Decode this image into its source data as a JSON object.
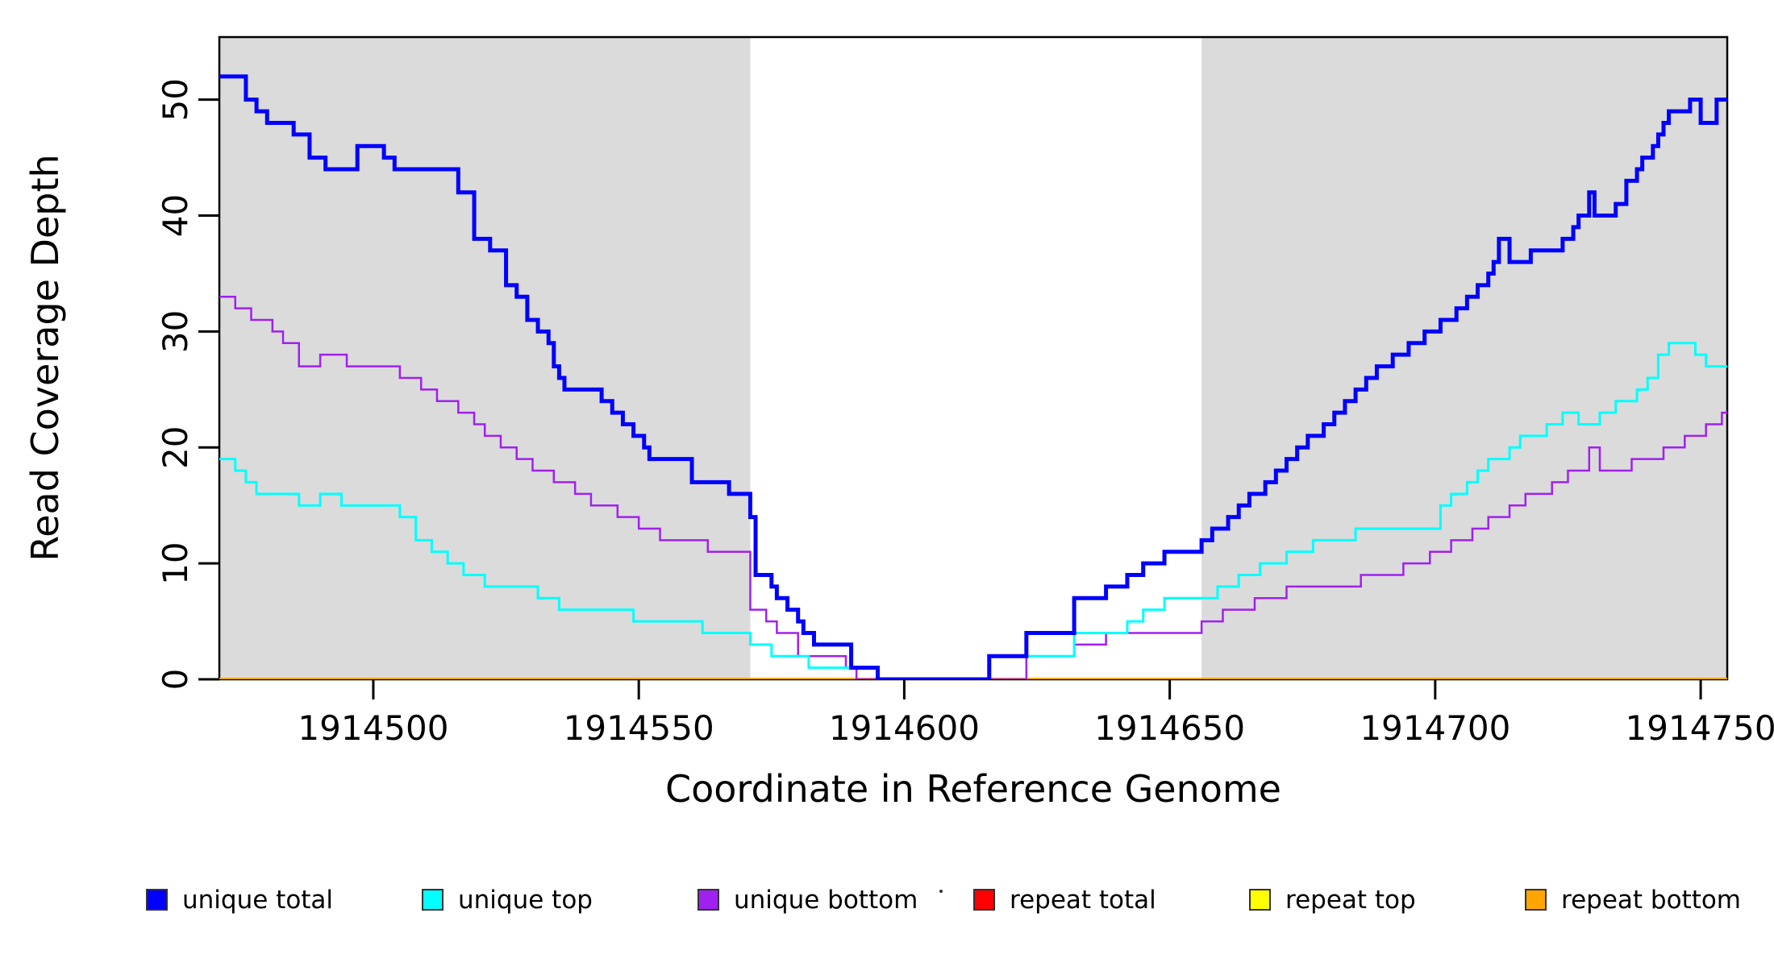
{
  "page": {
    "background": "#FFFFFF"
  },
  "chart_data": {
    "type": "line",
    "step": true,
    "title": "",
    "xlabel": "Coordinate in Reference Genome",
    "ylabel": "Read Coverage Depth",
    "xlim": [
      1914471,
      1914755
    ],
    "ylim": [
      0,
      55.4
    ],
    "xticks": [
      1914500,
      1914550,
      1914600,
      1914650,
      1914700,
      1914750
    ],
    "yticks": [
      0,
      10,
      20,
      30,
      40,
      50
    ],
    "grid": false,
    "plot_background": "#FFFFFF",
    "shaded_region_color": "#DBDBDB",
    "shaded_regions": [
      {
        "name": "left-shaded-region",
        "x0": 1914471,
        "x1": 1914571
      },
      {
        "name": "right-shaded-region",
        "x0": 1914656,
        "x1": 1914755
      }
    ],
    "legend": {
      "position": "bottom",
      "entries": [
        {
          "label": "unique total",
          "color": "#0000FF"
        },
        {
          "label": "unique top",
          "color": "#00FFFF"
        },
        {
          "label": "unique bottom",
          "color": "#A020F0"
        },
        {
          "label": "repeat total",
          "color": "#FF0000"
        },
        {
          "label": "repeat top",
          "color": "#FFFF00"
        },
        {
          "label": "repeat bottom",
          "color": "#FFA500"
        }
      ]
    },
    "series": [
      {
        "name": "repeat-total",
        "label": "repeat total",
        "color": "#FF0000",
        "line_width": 2.5,
        "points": [
          [
            1914471,
            0
          ]
        ]
      },
      {
        "name": "repeat-top",
        "label": "repeat top",
        "color": "#FFFF00",
        "line_width": 2.5,
        "points": [
          [
            1914471,
            0
          ]
        ]
      },
      {
        "name": "repeat-bottom",
        "label": "repeat bottom",
        "color": "#FFA500",
        "line_width": 4,
        "points": [
          [
            1914471,
            0
          ]
        ]
      },
      {
        "name": "unique-bottom",
        "label": "unique bottom",
        "color": "#A020F0",
        "line_width": 2.5,
        "points": [
          [
            1914471,
            33
          ],
          [
            1914474,
            32
          ],
          [
            1914477,
            31
          ],
          [
            1914481,
            30
          ],
          [
            1914483,
            29
          ],
          [
            1914486,
            27
          ],
          [
            1914490,
            28
          ],
          [
            1914495,
            27
          ],
          [
            1914505,
            26
          ],
          [
            1914509,
            25
          ],
          [
            1914512,
            24
          ],
          [
            1914516,
            23
          ],
          [
            1914519,
            22
          ],
          [
            1914521,
            21
          ],
          [
            1914524,
            20
          ],
          [
            1914527,
            19
          ],
          [
            1914530,
            18
          ],
          [
            1914534,
            17
          ],
          [
            1914538,
            16
          ],
          [
            1914541,
            15
          ],
          [
            1914546,
            14
          ],
          [
            1914550,
            13
          ],
          [
            1914554,
            12
          ],
          [
            1914563,
            11
          ],
          [
            1914571,
            6
          ],
          [
            1914574,
            5
          ],
          [
            1914576,
            4
          ],
          [
            1914580,
            2
          ],
          [
            1914589,
            1
          ],
          [
            1914591,
            0
          ],
          [
            1914623,
            2
          ],
          [
            1914632,
            3
          ],
          [
            1914638,
            4
          ],
          [
            1914656,
            5
          ],
          [
            1914660,
            6
          ],
          [
            1914666,
            7
          ],
          [
            1914672,
            8
          ],
          [
            1914686,
            9
          ],
          [
            1914694,
            10
          ],
          [
            1914699,
            11
          ],
          [
            1914703,
            12
          ],
          [
            1914707,
            13
          ],
          [
            1914710,
            14
          ],
          [
            1914714,
            15
          ],
          [
            1914717,
            16
          ],
          [
            1914722,
            17
          ],
          [
            1914725,
            18
          ],
          [
            1914729,
            20
          ],
          [
            1914731,
            18
          ],
          [
            1914737,
            19
          ],
          [
            1914743,
            20
          ],
          [
            1914747,
            21
          ],
          [
            1914751,
            22
          ],
          [
            1914754,
            23
          ]
        ]
      },
      {
        "name": "unique-top",
        "label": "unique top",
        "color": "#00FFFF",
        "line_width": 3,
        "points": [
          [
            1914471,
            19
          ],
          [
            1914474,
            18
          ],
          [
            1914476,
            17
          ],
          [
            1914478,
            16
          ],
          [
            1914486,
            15
          ],
          [
            1914490,
            16
          ],
          [
            1914494,
            15
          ],
          [
            1914505,
            14
          ],
          [
            1914508,
            12
          ],
          [
            1914511,
            11
          ],
          [
            1914514,
            10
          ],
          [
            1914517,
            9
          ],
          [
            1914521,
            8
          ],
          [
            1914531,
            7
          ],
          [
            1914535,
            6
          ],
          [
            1914549,
            5
          ],
          [
            1914562,
            4
          ],
          [
            1914571,
            3
          ],
          [
            1914575,
            2
          ],
          [
            1914582,
            1
          ],
          [
            1914595,
            0
          ],
          [
            1914616,
            2
          ],
          [
            1914632,
            4
          ],
          [
            1914642,
            5
          ],
          [
            1914645,
            6
          ],
          [
            1914649,
            7
          ],
          [
            1914659,
            8
          ],
          [
            1914663,
            9
          ],
          [
            1914667,
            10
          ],
          [
            1914672,
            11
          ],
          [
            1914677,
            12
          ],
          [
            1914685,
            13
          ],
          [
            1914701,
            15
          ],
          [
            1914703,
            16
          ],
          [
            1914706,
            17
          ],
          [
            1914708,
            18
          ],
          [
            1914710,
            19
          ],
          [
            1914714,
            20
          ],
          [
            1914716,
            21
          ],
          [
            1914721,
            22
          ],
          [
            1914724,
            23
          ],
          [
            1914727,
            22
          ],
          [
            1914731,
            23
          ],
          [
            1914734,
            24
          ],
          [
            1914738,
            25
          ],
          [
            1914740,
            26
          ],
          [
            1914742,
            28
          ],
          [
            1914744,
            29
          ],
          [
            1914749,
            28
          ],
          [
            1914751,
            27
          ]
        ]
      },
      {
        "name": "unique-total",
        "label": "unique total",
        "color": "#0000FF",
        "line_width": 5,
        "points": [
          [
            1914471,
            52
          ],
          [
            1914476,
            50
          ],
          [
            1914478,
            49
          ],
          [
            1914480,
            48
          ],
          [
            1914485,
            47
          ],
          [
            1914488,
            45
          ],
          [
            1914491,
            44
          ],
          [
            1914497,
            46
          ],
          [
            1914502,
            45
          ],
          [
            1914504,
            44
          ],
          [
            1914516,
            42
          ],
          [
            1914519,
            38
          ],
          [
            1914522,
            37
          ],
          [
            1914525,
            34
          ],
          [
            1914527,
            33
          ],
          [
            1914529,
            31
          ],
          [
            1914531,
            30
          ],
          [
            1914533,
            29
          ],
          [
            1914534,
            27
          ],
          [
            1914535,
            26
          ],
          [
            1914536,
            25
          ],
          [
            1914543,
            24
          ],
          [
            1914545,
            23
          ],
          [
            1914547,
            22
          ],
          [
            1914549,
            21
          ],
          [
            1914551,
            20
          ],
          [
            1914552,
            19
          ],
          [
            1914560,
            17
          ],
          [
            1914567,
            16
          ],
          [
            1914571,
            14
          ],
          [
            1914572,
            9
          ],
          [
            1914575,
            8
          ],
          [
            1914576,
            7
          ],
          [
            1914578,
            6
          ],
          [
            1914580,
            5
          ],
          [
            1914581,
            4
          ],
          [
            1914583,
            3
          ],
          [
            1914590,
            1
          ],
          [
            1914595,
            0
          ],
          [
            1914616,
            2
          ],
          [
            1914623,
            4
          ],
          [
            1914632,
            7
          ],
          [
            1914638,
            8
          ],
          [
            1914642,
            9
          ],
          [
            1914645,
            10
          ],
          [
            1914649,
            11
          ],
          [
            1914656,
            12
          ],
          [
            1914658,
            13
          ],
          [
            1914661,
            14
          ],
          [
            1914663,
            15
          ],
          [
            1914665,
            16
          ],
          [
            1914668,
            17
          ],
          [
            1914670,
            18
          ],
          [
            1914672,
            19
          ],
          [
            1914674,
            20
          ],
          [
            1914676,
            21
          ],
          [
            1914679,
            22
          ],
          [
            1914681,
            23
          ],
          [
            1914683,
            24
          ],
          [
            1914685,
            25
          ],
          [
            1914687,
            26
          ],
          [
            1914689,
            27
          ],
          [
            1914692,
            28
          ],
          [
            1914695,
            29
          ],
          [
            1914698,
            30
          ],
          [
            1914701,
            31
          ],
          [
            1914704,
            32
          ],
          [
            1914706,
            33
          ],
          [
            1914708,
            34
          ],
          [
            1914710,
            35
          ],
          [
            1914711,
            36
          ],
          [
            1914712,
            38
          ],
          [
            1914714,
            36
          ],
          [
            1914718,
            37
          ],
          [
            1914724,
            38
          ],
          [
            1914726,
            39
          ],
          [
            1914727,
            40
          ],
          [
            1914729,
            42
          ],
          [
            1914730,
            40
          ],
          [
            1914734,
            41
          ],
          [
            1914736,
            43
          ],
          [
            1914738,
            44
          ],
          [
            1914739,
            45
          ],
          [
            1914741,
            46
          ],
          [
            1914742,
            47
          ],
          [
            1914743,
            48
          ],
          [
            1914744,
            49
          ],
          [
            1914748,
            50
          ],
          [
            1914750,
            48
          ],
          [
            1914753,
            50
          ]
        ]
      }
    ]
  }
}
